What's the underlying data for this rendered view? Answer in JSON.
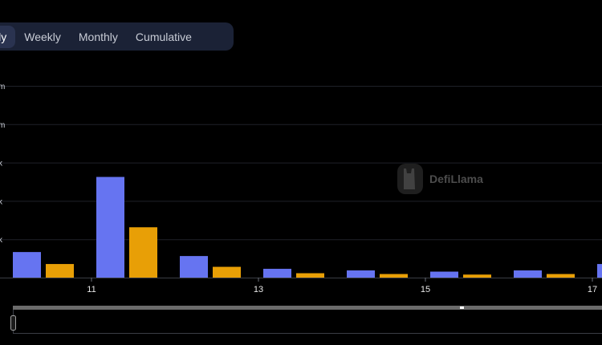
{
  "tabs": [
    {
      "label": "ily",
      "active": true
    },
    {
      "label": "Weekly",
      "active": false
    },
    {
      "label": "Monthly",
      "active": false
    },
    {
      "label": "Cumulative",
      "active": false
    }
  ],
  "watermark": {
    "text": "DefiLlama"
  },
  "chart_data": {
    "type": "bar",
    "y_tick_labels": [
      "m",
      "m",
      "k",
      "k",
      "k"
    ],
    "x_tick_labels": [
      "11",
      "13",
      "15",
      "17"
    ],
    "series": [
      {
        "color": "#6674f1",
        "values": [
          0.32,
          1.26,
          0.27,
          0.11,
          0.09,
          0.075,
          0.09,
          0.17
        ]
      },
      {
        "color": "#e89f06",
        "values": [
          0.17,
          0.63,
          0.135,
          0.055,
          0.045,
          0.038,
          0.045
        ]
      }
    ],
    "ylim": [
      0,
      2.4
    ],
    "grid": true
  }
}
